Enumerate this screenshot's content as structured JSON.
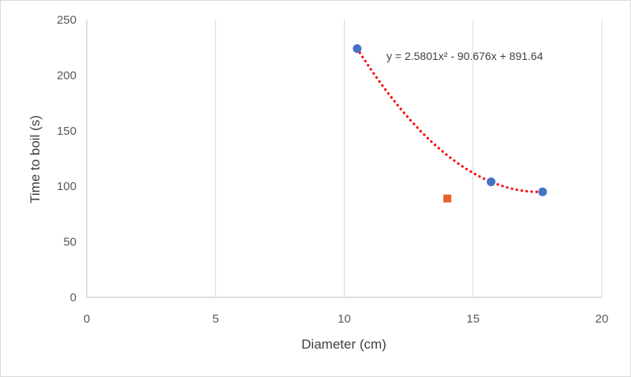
{
  "chart_data": {
    "type": "scatter",
    "xlabel": "Diameter  (cm)",
    "ylabel": "Time to boil  (s)",
    "xlim": [
      0,
      20
    ],
    "ylim": [
      0,
      250
    ],
    "x_ticks": [
      0,
      5,
      10,
      15,
      20
    ],
    "y_ticks": [
      0,
      50,
      100,
      150,
      200,
      250
    ],
    "grid": {
      "vertical": true,
      "horizontal": false
    },
    "series": [
      {
        "marker": "circle",
        "color": "#4472C4",
        "x": [
          10.5,
          15.7,
          17.7
        ],
        "y": [
          224,
          104,
          95
        ]
      },
      {
        "marker": "square",
        "color": "#ED5E2B",
        "x": [
          14.0
        ],
        "y": [
          89
        ]
      }
    ],
    "trendline": {
      "type": "polynomial",
      "order": 2,
      "coefficients": [
        2.5801,
        -90.676,
        891.64
      ],
      "x_range": [
        10.5,
        17.7
      ],
      "color": "#FF0000",
      "style": "dotted",
      "equation_label": "y = 2.5801x² - 90.676x + 891.64"
    }
  }
}
